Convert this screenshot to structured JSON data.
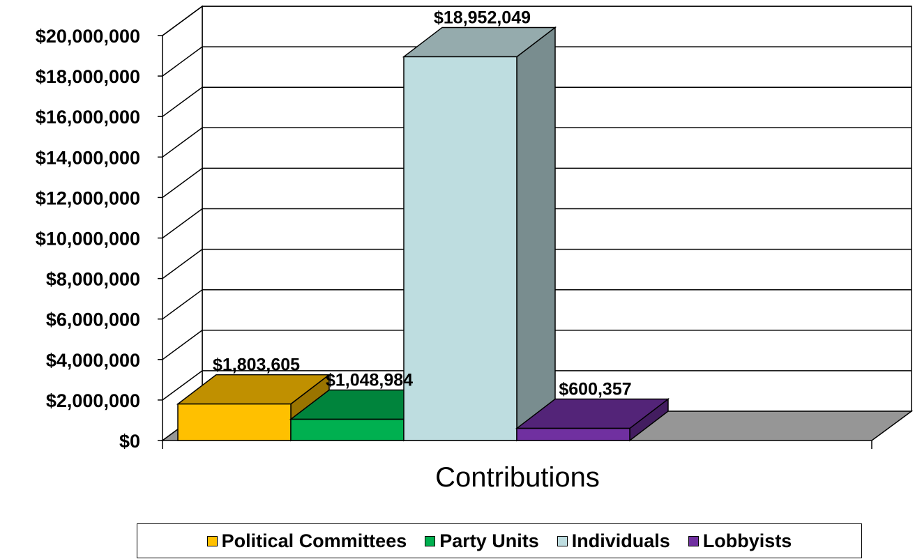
{
  "chart_data": {
    "type": "bar",
    "style": "3d-clustered-column",
    "title": "",
    "xlabel": "",
    "ylabel": "",
    "categories": [
      "Contributions"
    ],
    "series": [
      {
        "name": "Political Committees",
        "values": [
          1803605
        ],
        "label": "$1,803,605",
        "color": "#ffc000",
        "top_color": "#c09000",
        "side_color": "#9a7400"
      },
      {
        "name": "Party Units",
        "values": [
          1048984
        ],
        "label": "$1,048,984",
        "color": "#00b050",
        "top_color": "#00843c",
        "side_color": "#006a30"
      },
      {
        "name": "Individuals",
        "values": [
          18952049
        ],
        "label": "$18,952,049",
        "color": "#bedde0",
        "top_color": "#95abad",
        "side_color": "#798d8f"
      },
      {
        "name": "Lobbyists",
        "values": [
          600357
        ],
        "label": "$600,357",
        "color": "#7030a0",
        "top_color": "#532478",
        "side_color": "#431d60"
      }
    ],
    "ylim": [
      0,
      20000000
    ],
    "y_ticks": [
      {
        "value": 0,
        "label": "$0"
      },
      {
        "value": 2000000,
        "label": "$2,000,000"
      },
      {
        "value": 4000000,
        "label": "$4,000,000"
      },
      {
        "value": 6000000,
        "label": "$6,000,000"
      },
      {
        "value": 8000000,
        "label": "$8,000,000"
      },
      {
        "value": 10000000,
        "label": "$10,000,000"
      },
      {
        "value": 12000000,
        "label": "$12,000,000"
      },
      {
        "value": 14000000,
        "label": "$14,000,000"
      },
      {
        "value": 16000000,
        "label": "$16,000,000"
      },
      {
        "value": 18000000,
        "label": "$18,000,000"
      },
      {
        "value": 20000000,
        "label": "$20,000,000"
      }
    ],
    "grid": true,
    "legend_position": "bottom",
    "floor_color": "#969696"
  }
}
